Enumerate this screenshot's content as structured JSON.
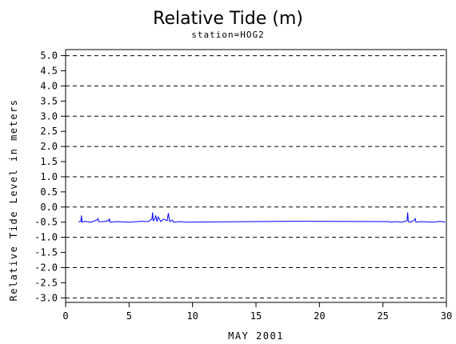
{
  "chart_data": {
    "type": "line",
    "title": "Relative Tide (m)",
    "subtitle": "station=HOG2",
    "xlabel": "MAY 2001",
    "ylabel": "Relative Tide Level in meters",
    "xlim": [
      0,
      30
    ],
    "ylim": [
      -3.0,
      5.0
    ],
    "xticks": [
      0,
      5,
      10,
      15,
      20,
      25,
      30
    ],
    "xtick_labels": [
      "0",
      "5",
      "10",
      "15",
      "20",
      "25",
      "30"
    ],
    "yticks": [
      5.0,
      4.5,
      4.0,
      3.5,
      3.0,
      2.5,
      2.0,
      1.5,
      1.0,
      0.5,
      0.0,
      -0.5,
      -1.0,
      -1.5,
      -2.0,
      -2.5,
      -3.0
    ],
    "ytick_labels": [
      "5.0",
      "4.5",
      "4.0",
      "3.5",
      "3.0",
      "2.5",
      "2.0",
      "1.5",
      "1.0",
      "0.5",
      "0.0",
      "-0.5",
      "-1.0",
      "-1.5",
      "-2.0",
      "-2.5",
      "-3.0"
    ],
    "grid": "horizontal dashed at whole meters",
    "grid_values": [
      5,
      4,
      3,
      2,
      1,
      0,
      -1,
      -2,
      -3
    ],
    "series_color": "#0000ff",
    "series": [
      {
        "x": [
          1.0,
          1.2,
          1.25,
          1.3,
          1.5,
          2.0,
          2.5,
          2.55,
          2.6,
          3.0,
          3.4,
          3.45,
          3.5,
          4.0,
          5.0,
          6.0,
          6.5,
          6.8,
          6.85,
          6.9,
          7.0,
          7.1,
          7.2,
          7.3,
          7.5,
          7.7,
          8.0,
          8.1,
          8.15,
          8.2,
          8.4,
          8.5,
          9.0,
          9.5,
          17.5,
          25.5,
          25.6,
          26.0,
          26.5,
          26.9,
          26.95,
          27.0,
          27.2,
          27.5,
          27.55,
          27.6,
          28.0,
          29.0,
          29.5,
          29.9
        ],
        "y": [
          -0.48,
          -0.48,
          -0.28,
          -0.5,
          -0.47,
          -0.5,
          -0.42,
          -0.38,
          -0.48,
          -0.48,
          -0.45,
          -0.38,
          -0.5,
          -0.48,
          -0.5,
          -0.47,
          -0.48,
          -0.4,
          -0.18,
          -0.45,
          -0.42,
          -0.28,
          -0.48,
          -0.33,
          -0.48,
          -0.4,
          -0.45,
          -0.2,
          -0.35,
          -0.48,
          -0.43,
          -0.5,
          -0.48,
          -0.5,
          -0.47,
          -0.48,
          -0.5,
          -0.48,
          -0.5,
          -0.45,
          -0.18,
          -0.48,
          -0.5,
          -0.42,
          -0.38,
          -0.5,
          -0.48,
          -0.5,
          -0.47,
          -0.5
        ]
      }
    ]
  }
}
